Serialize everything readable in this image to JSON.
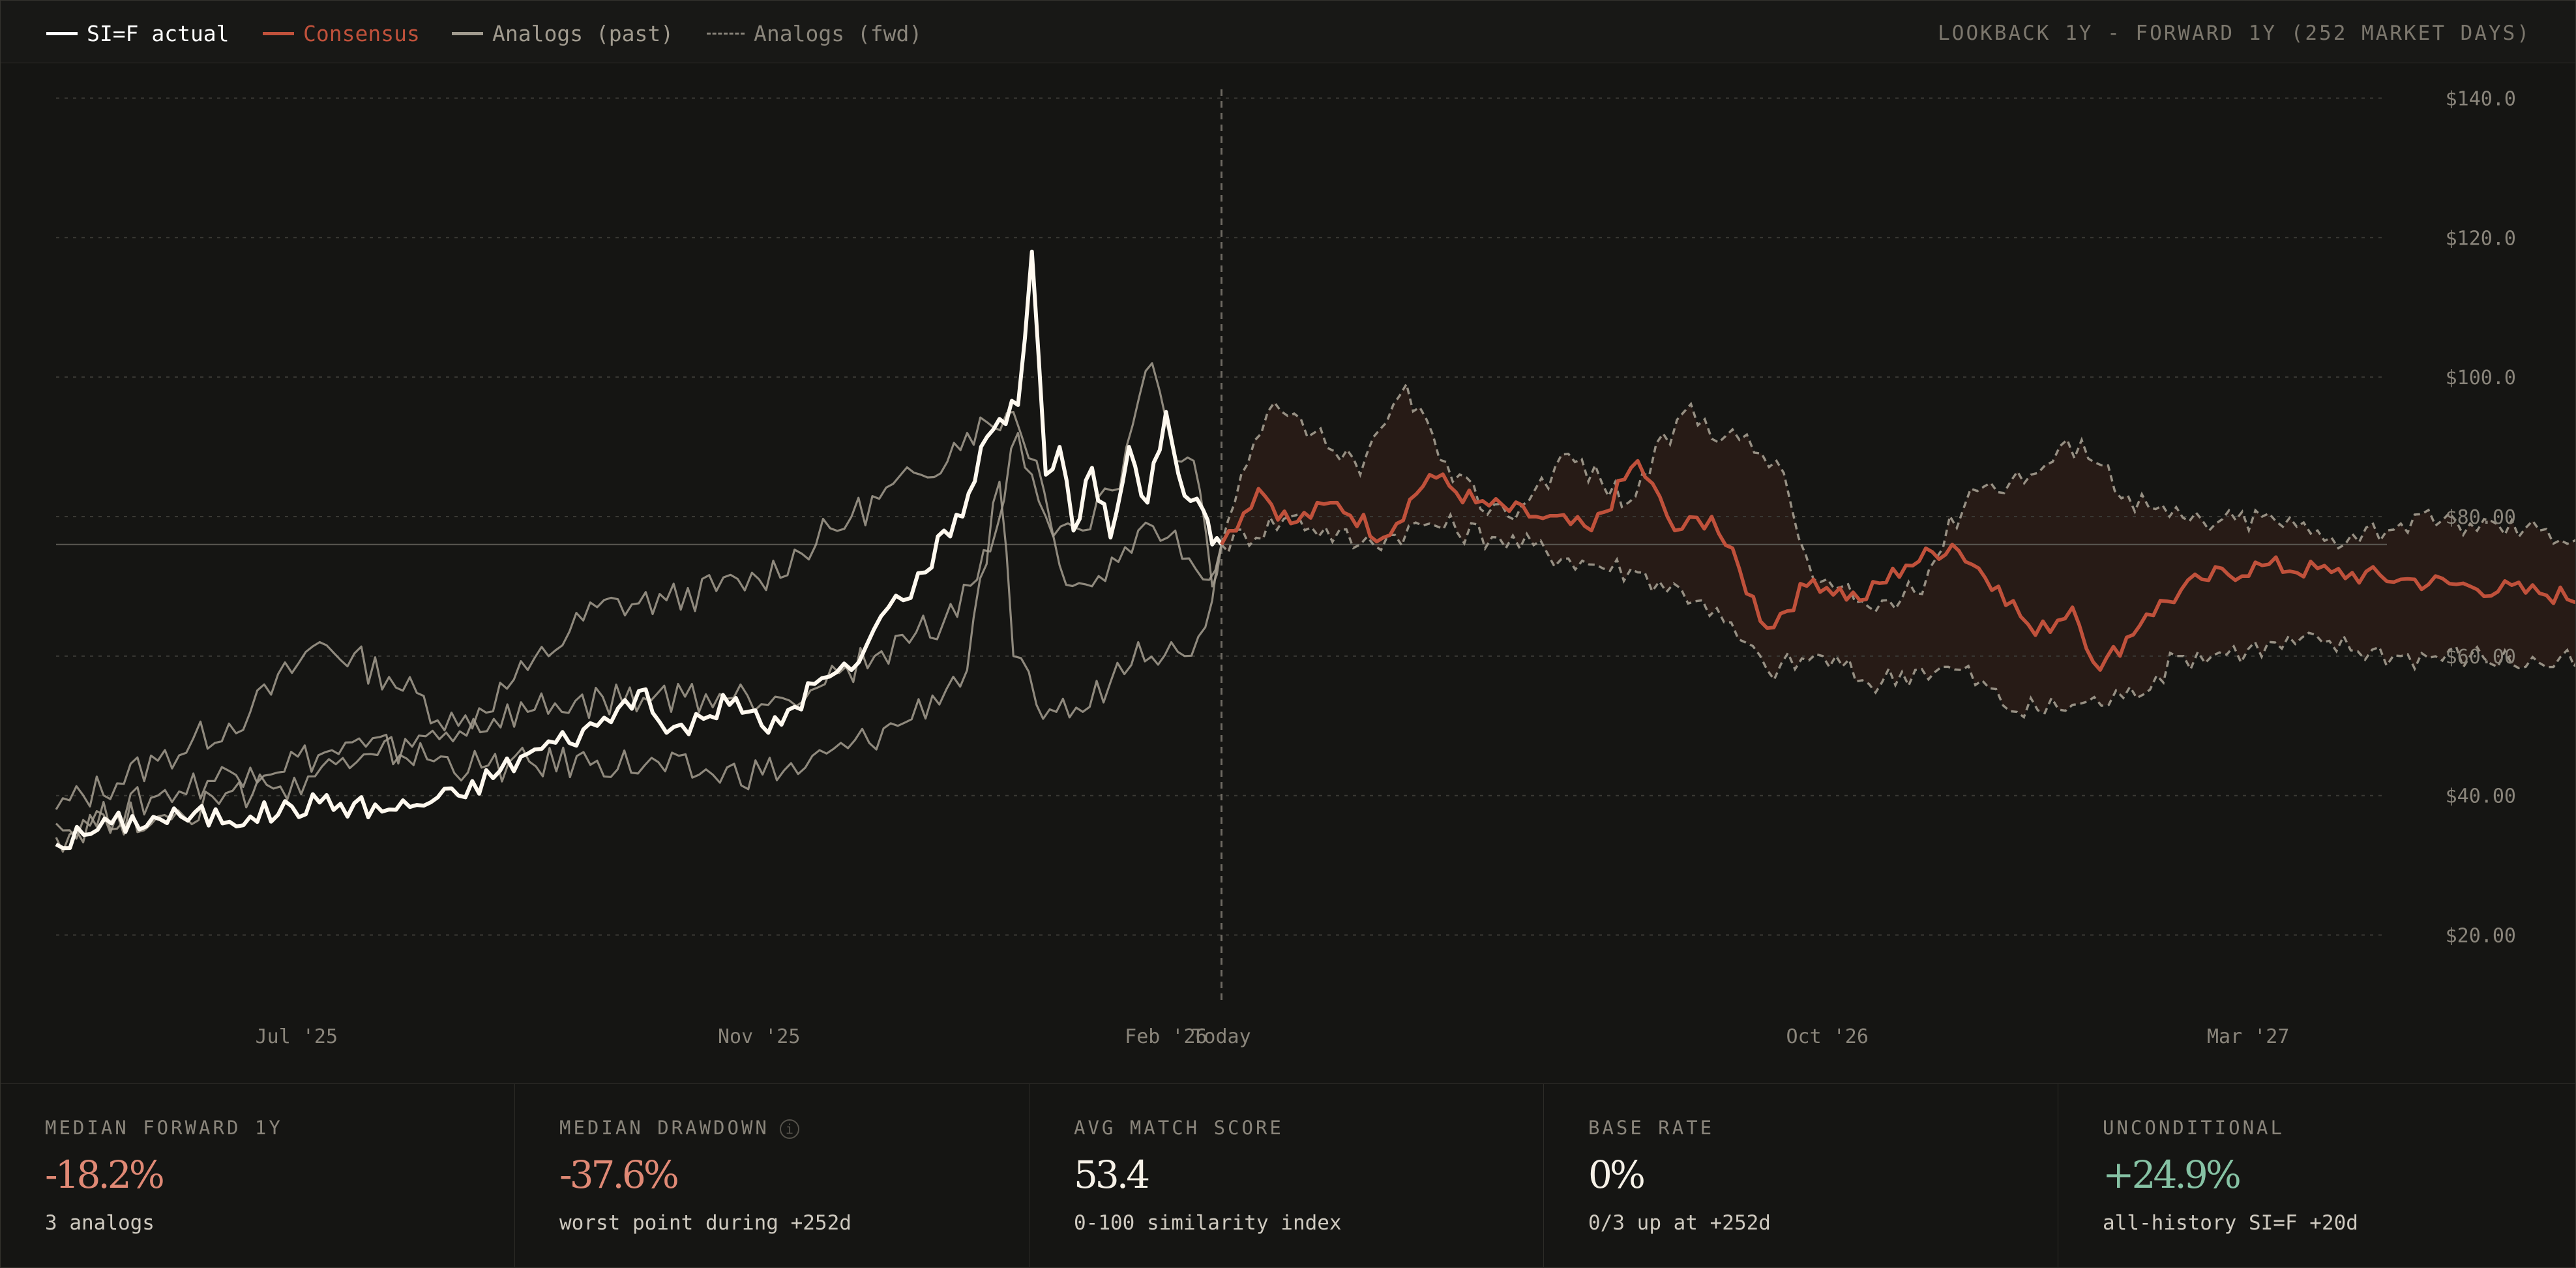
{
  "legend": {
    "items": [
      {
        "label": "SI=F actual",
        "color": "#ffffff",
        "style": "solid"
      },
      {
        "label": "Consensus",
        "color": "#c0513b",
        "style": "solid"
      },
      {
        "label": "Analogs (past)",
        "color": "#a09a8e",
        "style": "solid"
      },
      {
        "label": "Analogs (fwd)",
        "color": "#8a857b",
        "style": "dashed"
      }
    ],
    "range_label": "LOOKBACK 1Y - FORWARD 1Y (252 MARKET DAYS)"
  },
  "colors": {
    "background": "#151513",
    "actual": "#fff9ef",
    "consensus": "#c0513b",
    "analog_past": "#a49d90",
    "analog_fwd": "#a49d90",
    "positive": "#86c2a4",
    "negative": "#e08975"
  },
  "chart_data": {
    "type": "line",
    "x_ticks": [
      "Jul '25",
      "Nov '25",
      "Feb '26",
      "Today",
      "Oct '26",
      "Mar '27"
    ],
    "y_ticks": [
      "$140.0",
      "$120.0",
      "$100.0",
      "$80.00",
      "$60.00",
      "$40.00",
      "$20.00"
    ],
    "ylim": [
      15,
      145
    ],
    "x_range_days": [
      -252,
      252
    ],
    "today_marker": "Today",
    "current_level": 76,
    "grid": true,
    "legend_position": "top-left",
    "series": [
      {
        "name": "SI=F actual",
        "kind": "actual",
        "points": [
          [
            -252,
            33
          ],
          [
            -240,
            36
          ],
          [
            -225,
            37
          ],
          [
            -210,
            37
          ],
          [
            -195,
            39
          ],
          [
            -180,
            38
          ],
          [
            -165,
            40
          ],
          [
            -150,
            46
          ],
          [
            -135,
            50
          ],
          [
            -126,
            55
          ],
          [
            -120,
            49
          ],
          [
            -112,
            51
          ],
          [
            -105,
            54
          ],
          [
            -98,
            49
          ],
          [
            -88,
            56
          ],
          [
            -80,
            58
          ],
          [
            -72,
            67
          ],
          [
            -64,
            72
          ],
          [
            -60,
            78
          ],
          [
            -56,
            80
          ],
          [
            -52,
            90
          ],
          [
            -48,
            94
          ],
          [
            -44,
            96
          ],
          [
            -41,
            118
          ],
          [
            -38,
            86
          ],
          [
            -35,
            90
          ],
          [
            -32,
            78
          ],
          [
            -28,
            87
          ],
          [
            -24,
            77
          ],
          [
            -20,
            90
          ],
          [
            -16,
            82
          ],
          [
            -12,
            95
          ],
          [
            -8,
            83
          ],
          [
            -4,
            81
          ],
          [
            -2,
            76
          ],
          [
            0,
            76
          ]
        ]
      },
      {
        "name": "Consensus",
        "kind": "consensus",
        "points": [
          [
            0,
            76
          ],
          [
            8,
            84
          ],
          [
            15,
            79
          ],
          [
            25,
            82
          ],
          [
            35,
            77
          ],
          [
            45,
            86
          ],
          [
            55,
            82
          ],
          [
            68,
            80
          ],
          [
            80,
            78
          ],
          [
            90,
            88
          ],
          [
            98,
            78
          ],
          [
            106,
            80
          ],
          [
            118,
            64
          ],
          [
            128,
            71
          ],
          [
            138,
            68
          ],
          [
            148,
            73
          ],
          [
            158,
            76
          ],
          [
            168,
            70
          ],
          [
            176,
            63
          ],
          [
            184,
            67
          ],
          [
            190,
            58
          ],
          [
            200,
            66
          ],
          [
            212,
            71
          ],
          [
            225,
            73
          ],
          [
            240,
            72
          ],
          [
            255,
            71
          ],
          [
            270,
            70
          ],
          [
            285,
            69
          ],
          [
            300,
            68
          ],
          [
            310,
            67
          ],
          [
            316,
            63
          ],
          [
            320,
            60
          ],
          [
            324,
            62
          ]
        ]
      },
      {
        "name": "Analogs (past)",
        "kind": "past",
        "points": [
          [
            -252,
            38
          ],
          [
            -230,
            45
          ],
          [
            -210,
            52
          ],
          [
            -195,
            62
          ],
          [
            -180,
            57
          ],
          [
            -165,
            50
          ],
          [
            -150,
            58
          ],
          [
            -135,
            67
          ],
          [
            -120,
            68
          ],
          [
            -100,
            71
          ],
          [
            -80,
            80
          ],
          [
            -65,
            86
          ],
          [
            -55,
            92
          ],
          [
            -45,
            95
          ],
          [
            -40,
            88
          ],
          [
            -35,
            73
          ],
          [
            -28,
            70
          ],
          [
            -18,
            78
          ],
          [
            -10,
            78
          ],
          [
            -4,
            71
          ],
          [
            0,
            76
          ]
        ]
      },
      {
        "name": "Analogs (past)",
        "kind": "past",
        "points": [
          [
            -252,
            34
          ],
          [
            -230,
            40
          ],
          [
            -210,
            44
          ],
          [
            -185,
            47
          ],
          [
            -160,
            44
          ],
          [
            -135,
            45
          ],
          [
            -110,
            43
          ],
          [
            -90,
            44
          ],
          [
            -70,
            50
          ],
          [
            -55,
            58
          ],
          [
            -48,
            85
          ],
          [
            -45,
            60
          ],
          [
            -40,
            53
          ],
          [
            -30,
            52
          ],
          [
            -18,
            62
          ],
          [
            -8,
            60
          ],
          [
            -2,
            68
          ],
          [
            0,
            76
          ]
        ]
      },
      {
        "name": "Analogs (past)",
        "kind": "past",
        "points": [
          [
            -252,
            36
          ],
          [
            -230,
            37
          ],
          [
            -205,
            41
          ],
          [
            -175,
            47
          ],
          [
            -150,
            52
          ],
          [
            -125,
            54
          ],
          [
            -95,
            54
          ],
          [
            -75,
            60
          ],
          [
            -60,
            65
          ],
          [
            -50,
            75
          ],
          [
            -44,
            92
          ],
          [
            -38,
            80
          ],
          [
            -30,
            78
          ],
          [
            -22,
            84
          ],
          [
            -15,
            102
          ],
          [
            -10,
            88
          ],
          [
            -6,
            88
          ],
          [
            -2,
            70
          ],
          [
            0,
            76
          ]
        ]
      },
      {
        "name": "Analogs (fwd)",
        "kind": "fwd",
        "points": [
          [
            0,
            76
          ],
          [
            10,
            95
          ],
          [
            20,
            92
          ],
          [
            30,
            86
          ],
          [
            40,
            99
          ],
          [
            50,
            85
          ],
          [
            62,
            80
          ],
          [
            75,
            89
          ],
          [
            88,
            82
          ],
          [
            100,
            95
          ],
          [
            112,
            91
          ],
          [
            120,
            88
          ],
          [
            128,
            71
          ],
          [
            140,
            67
          ],
          [
            150,
            69
          ],
          [
            162,
            84
          ],
          [
            175,
            86
          ],
          [
            186,
            91
          ],
          [
            196,
            83
          ],
          [
            205,
            80
          ],
          [
            215,
            79
          ],
          [
            225,
            80
          ],
          [
            240,
            77
          ],
          [
            255,
            79
          ],
          [
            270,
            79
          ],
          [
            285,
            78
          ],
          [
            300,
            77
          ],
          [
            315,
            75
          ],
          [
            324,
            71
          ]
        ]
      },
      {
        "name": "Analogs (fwd)",
        "kind": "fwd",
        "points": [
          [
            0,
            76
          ],
          [
            15,
            80
          ],
          [
            30,
            76
          ],
          [
            45,
            79
          ],
          [
            60,
            77
          ],
          [
            75,
            74
          ],
          [
            90,
            72
          ],
          [
            104,
            68
          ],
          [
            118,
            58
          ],
          [
            130,
            60
          ],
          [
            140,
            56
          ],
          [
            150,
            58
          ],
          [
            160,
            58
          ],
          [
            172,
            52
          ],
          [
            184,
            53
          ],
          [
            195,
            54
          ],
          [
            208,
            60
          ],
          [
            222,
            61
          ],
          [
            238,
            62
          ],
          [
            255,
            60
          ],
          [
            270,
            60
          ],
          [
            285,
            59
          ],
          [
            300,
            59
          ],
          [
            315,
            58
          ],
          [
            324,
            56
          ]
        ]
      }
    ]
  },
  "stats": [
    {
      "label": "MEDIAN FORWARD 1Y",
      "value": "-18.2%",
      "sub": "3 analogs",
      "tone": "negative"
    },
    {
      "label": "MEDIAN DRAWDOWN",
      "value": "-37.6%",
      "sub": "worst point during +252d",
      "tone": "negative",
      "info_icon": "info-icon"
    },
    {
      "label": "AVG MATCH SCORE",
      "value": "53.4",
      "sub": "0-100 similarity index",
      "tone": "neutral"
    },
    {
      "label": "BASE RATE",
      "value": "0%",
      "sub": "0/3 up at +252d",
      "tone": "neutral"
    },
    {
      "label": "UNCONDITIONAL",
      "value": "+24.9%",
      "sub": "all-history SI=F +20d",
      "tone": "positive"
    }
  ]
}
